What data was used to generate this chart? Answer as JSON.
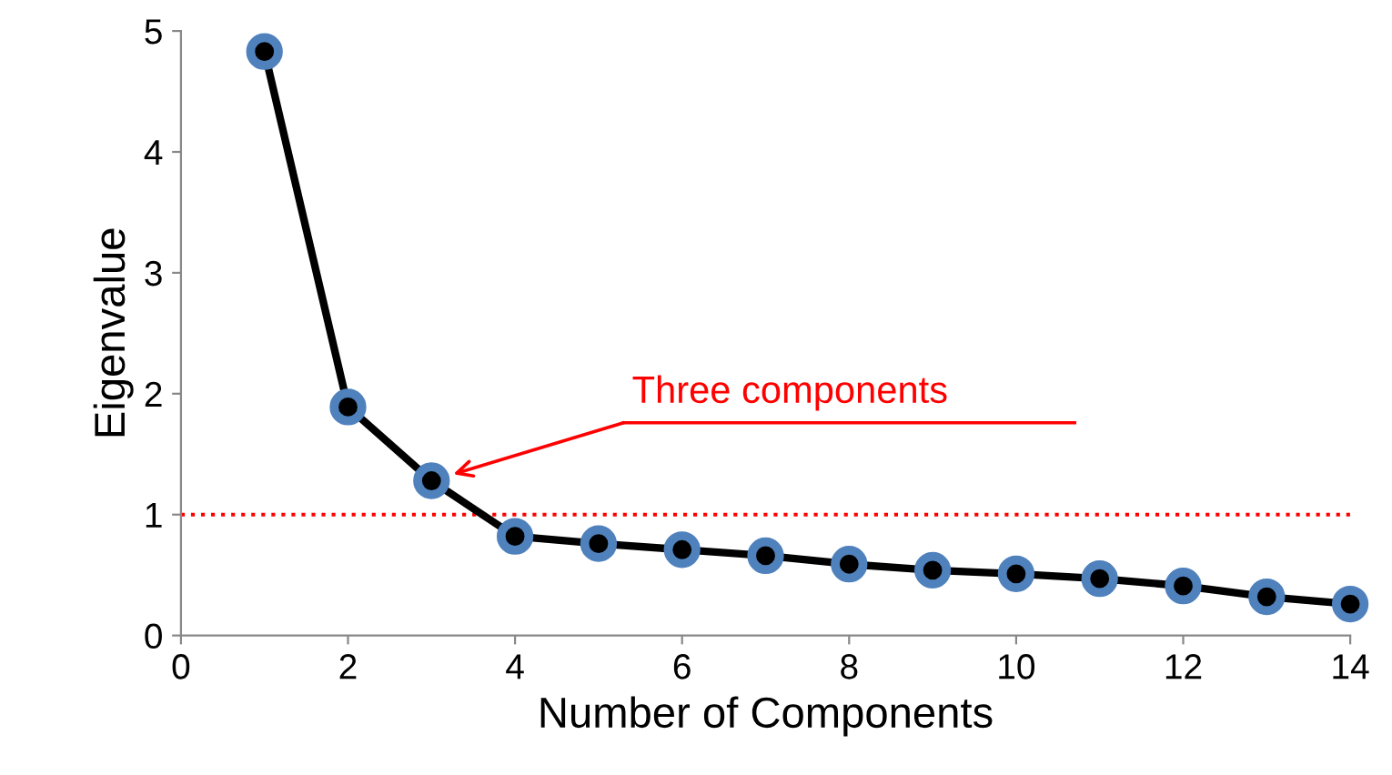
{
  "chart_data": {
    "type": "line",
    "xlabel": "Number of Components",
    "ylabel": "Eigenvalue",
    "x": [
      1,
      2,
      3,
      4,
      5,
      6,
      7,
      8,
      9,
      10,
      11,
      12,
      13,
      14
    ],
    "series": [
      {
        "color": "#000000",
        "values": [
          4.83,
          1.89,
          1.28,
          0.82,
          0.76,
          0.71,
          0.66,
          0.59,
          0.54,
          0.51,
          0.47,
          0.41,
          0.32,
          0.26
        ]
      }
    ],
    "marker": "circle",
    "line_style": "solid",
    "xlim": [
      0,
      14
    ],
    "xticks": [
      0,
      2,
      4,
      6,
      8,
      10,
      12,
      14
    ],
    "ylim": [
      0,
      5
    ],
    "yticks": [
      0,
      1,
      2,
      3,
      4,
      5
    ],
    "ref_lines": [
      {
        "axis": "y",
        "value": 1,
        "color": "#ff0000",
        "line_style": "dotted"
      }
    ],
    "annotations": [
      "Three components"
    ],
    "grid": false,
    "legend": false
  }
}
